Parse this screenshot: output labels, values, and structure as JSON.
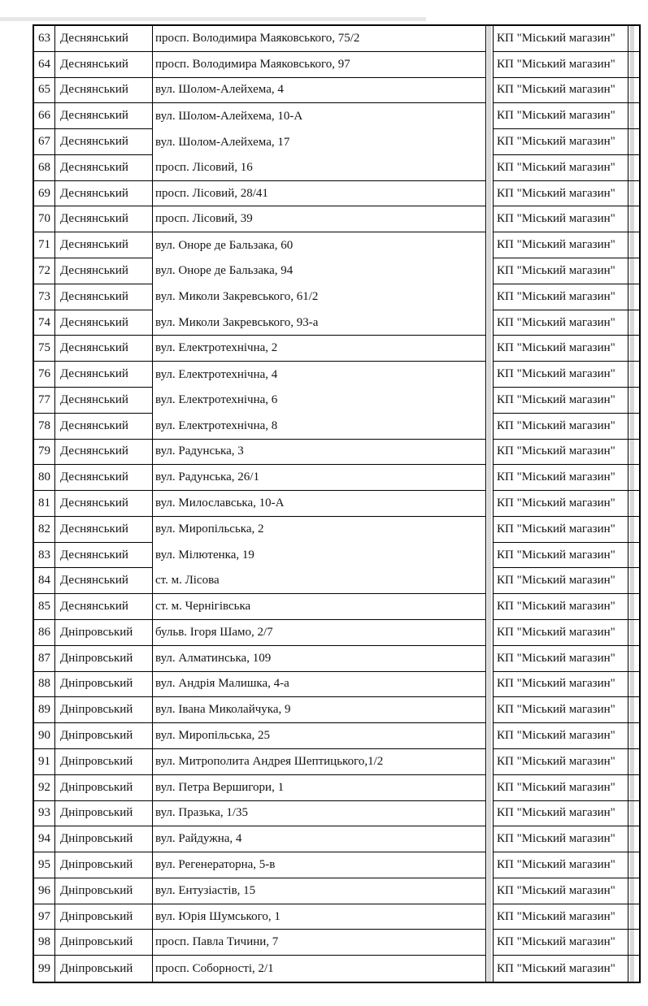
{
  "colors": {
    "border": "#000000",
    "text": "#141414",
    "scan_stripe": "#d9d9d9",
    "background": "#ffffff"
  },
  "table": {
    "address_merged_row_spans": [
      [
        66,
        68
      ],
      [
        71,
        74
      ],
      [
        76,
        78
      ],
      [
        82,
        84
      ]
    ],
    "rows": [
      {
        "n": "63",
        "district": "Деснянський",
        "address": "просп. Володимира Маяковського, 75/2",
        "operator": "КП \"Міський магазин\""
      },
      {
        "n": "64",
        "district": "Деснянський",
        "address": "просп. Володимира Маяковського, 97",
        "operator": "КП \"Міський магазин\""
      },
      {
        "n": "65",
        "district": "Деснянський",
        "address": "вул. Шолом-Алейхема, 4",
        "operator": "КП \"Міський магазин\""
      },
      {
        "n": "66",
        "district": "Деснянський",
        "address": "вул. Шолом-Алейхема, 10-А",
        "operator": "КП \"Міський магазин\""
      },
      {
        "n": "67",
        "district": "Деснянський",
        "address": "вул. Шолом-Алейхема, 17",
        "operator": "КП \"Міський магазин\""
      },
      {
        "n": "68",
        "district": "Деснянський",
        "address": "просп. Лісовий, 16",
        "operator": "КП \"Міський магазин\""
      },
      {
        "n": "69",
        "district": "Деснянський",
        "address": "просп. Лісовий, 28/41",
        "operator": "КП \"Міський магазин\""
      },
      {
        "n": "70",
        "district": "Деснянський",
        "address": "просп. Лісовий, 39",
        "operator": "КП \"Міський магазин\""
      },
      {
        "n": "71",
        "district": "Деснянський",
        "address": "вул. Оноре де Бальзака, 60",
        "operator": "КП \"Міський магазин\""
      },
      {
        "n": "72",
        "district": "Деснянський",
        "address": "вул. Оноре де Бальзака, 94",
        "operator": "КП \"Міський магазин\""
      },
      {
        "n": "73",
        "district": "Деснянський",
        "address": "вул. Миколи Закревського, 61/2",
        "operator": "КП \"Міський магазин\""
      },
      {
        "n": "74",
        "district": "Деснянський",
        "address": "вул. Миколи Закревського, 93-а",
        "operator": "КП \"Міський магазин\""
      },
      {
        "n": "75",
        "district": "Деснянський",
        "address": "вул. Електротехнічна, 2",
        "operator": "КП \"Міський магазин\""
      },
      {
        "n": "76",
        "district": "Деснянський",
        "address": "вул. Електротехнічна, 4",
        "operator": "КП \"Міський магазин\""
      },
      {
        "n": "77",
        "district": "Деснянський",
        "address": "вул. Електротехнічна, 6",
        "operator": "КП \"Міський магазин\""
      },
      {
        "n": "78",
        "district": "Деснянський",
        "address": "вул. Електротехнічна, 8",
        "operator": "КП \"Міський магазин\""
      },
      {
        "n": "79",
        "district": "Деснянський",
        "address": "вул. Радунська, 3",
        "operator": "КП \"Міський магазин\""
      },
      {
        "n": "80",
        "district": "Деснянський",
        "address": "вул. Радунська, 26/1",
        "operator": "КП \"Міський магазин\""
      },
      {
        "n": "81",
        "district": "Деснянський",
        "address": "вул. Милославська, 10-А",
        "operator": "КП \"Міський магазин\""
      },
      {
        "n": "82",
        "district": "Деснянський",
        "address": "вул. Миропільська, 2",
        "operator": "КП \"Міський магазин\""
      },
      {
        "n": "83",
        "district": "Деснянський",
        "address": "вул. Мілютенка, 19",
        "operator": "КП \"Міський магазин\""
      },
      {
        "n": "84",
        "district": "Деснянський",
        "address": "ст. м. Лісова",
        "operator": "КП \"Міський магазин\""
      },
      {
        "n": "85",
        "district": "Деснянський",
        "address": "ст. м. Чернігівська",
        "operator": "КП \"Міський магазин\""
      },
      {
        "n": "86",
        "district": "Дніпровський",
        "address": "бульв. Ігоря Шамо, 2/7",
        "operator": "КП \"Міський магазин\""
      },
      {
        "n": "87",
        "district": "Дніпровський",
        "address": "вул. Алматинська, 109",
        "operator": "КП \"Міський магазин\""
      },
      {
        "n": "88",
        "district": "Дніпровський",
        "address": "вул. Андрія Малишка, 4-а",
        "operator": "КП \"Міський магазин\""
      },
      {
        "n": "89",
        "district": "Дніпровський",
        "address": "вул. Івана Миколайчука, 9",
        "operator": "КП \"Міський магазин\""
      },
      {
        "n": "90",
        "district": "Дніпровський",
        "address": "вул. Миропільська, 25",
        "operator": "КП \"Міський магазин\""
      },
      {
        "n": "91",
        "district": "Дніпровський",
        "address": "вул. Митрополита Андрея Шептицького,1/2",
        "operator": "КП \"Міський магазин\""
      },
      {
        "n": "92",
        "district": "Дніпровський",
        "address": "вул. Петра Вершигори, 1",
        "operator": "КП \"Міський магазин\""
      },
      {
        "n": "93",
        "district": "Дніпровський",
        "address": "вул. Празька, 1/35",
        "operator": "КП \"Міський магазин\""
      },
      {
        "n": "94",
        "district": "Дніпровський",
        "address": "вул. Райдужна, 4",
        "operator": "КП \"Міський магазин\""
      },
      {
        "n": "95",
        "district": "Дніпровський",
        "address": "вул. Регенераторна, 5-в",
        "operator": "КП \"Міський магазин\""
      },
      {
        "n": "96",
        "district": "Дніпровський",
        "address": "вул. Ентузіастів, 15",
        "operator": "КП \"Міський магазин\""
      },
      {
        "n": "97",
        "district": "Дніпровський",
        "address": "вул. Юрія Шумського, 1",
        "operator": "КП \"Міський магазин\""
      },
      {
        "n": "98",
        "district": "Дніпровський",
        "address": "просп. Павла Тичини, 7",
        "operator": "КП \"Міський магазин\""
      },
      {
        "n": "99",
        "district": "Дніпровський",
        "address": "просп. Соборності, 2/1",
        "operator": "КП \"Міський магазин\""
      }
    ]
  }
}
